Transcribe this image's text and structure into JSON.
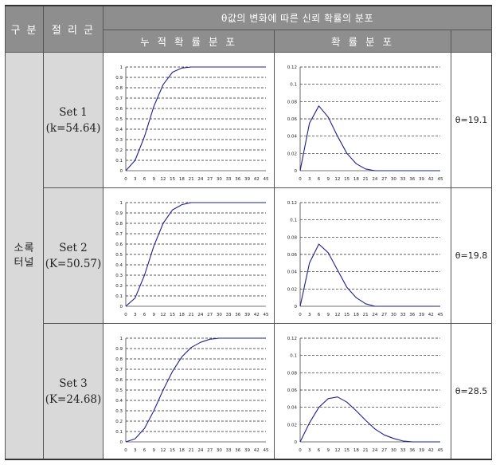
{
  "header": {
    "category": "구 분",
    "joint_group": "절 리 군",
    "title": "θ값의 변화에 따른 신뢰 확률의 분포",
    "cumulative": "누 적 확 률 분 포",
    "probability": "확 률 분 포"
  },
  "region": {
    "line1": "소록",
    "line2": "터널"
  },
  "rows": [
    {
      "set": "Set 1",
      "k": "(k=54.64)",
      "theta": "θ=19.1"
    },
    {
      "set": "Set 2",
      "k": "(K=50.57)",
      "theta": "θ=19.8"
    },
    {
      "set": "Set 3",
      "k": "(K=24.68)",
      "theta": "θ=28.5"
    }
  ],
  "chart_data": [
    {
      "type": "line",
      "series_of_row": 1,
      "kind": "cumulative",
      "x": [
        0,
        3,
        6,
        9,
        12,
        15,
        18,
        21,
        24,
        27,
        30,
        33,
        36,
        39,
        42,
        45
      ],
      "values": [
        0,
        0.1,
        0.33,
        0.62,
        0.83,
        0.95,
        0.99,
        1,
        1,
        1,
        1,
        1,
        1,
        1,
        1,
        1
      ],
      "ylim": [
        0,
        1
      ],
      "yticks": [
        "0",
        "0.1",
        "0.2",
        "0.3",
        "0.4",
        "0.5",
        "0.6",
        "0.7",
        "0.8",
        "0.9",
        "1"
      ],
      "xticks": [
        "0",
        "3",
        "6",
        "9",
        "12",
        "15",
        "18",
        "21",
        "24",
        "27",
        "30",
        "33",
        "36",
        "39",
        "42",
        "45"
      ],
      "color": "#1f1f8f"
    },
    {
      "type": "line",
      "series_of_row": 1,
      "kind": "probability",
      "x": [
        0,
        3,
        6,
        9,
        12,
        15,
        18,
        21,
        24,
        27,
        30,
        33,
        36,
        39,
        42,
        45
      ],
      "values": [
        0,
        0.055,
        0.075,
        0.062,
        0.04,
        0.02,
        0.008,
        0.002,
        0,
        0,
        0,
        0,
        0,
        0,
        0,
        0
      ],
      "ylim": [
        0,
        0.12
      ],
      "yticks": [
        "0",
        "0.02",
        "0.04",
        "0.06",
        "0.08",
        "0.1",
        "0.12"
      ],
      "xticks": [
        "0",
        "3",
        "6",
        "9",
        "12",
        "15",
        "18",
        "21",
        "24",
        "27",
        "30",
        "33",
        "36",
        "39",
        "42",
        "45"
      ],
      "color": "#1f1f8f"
    },
    {
      "type": "line",
      "series_of_row": 2,
      "kind": "cumulative",
      "x": [
        0,
        3,
        6,
        9,
        12,
        15,
        18,
        21,
        24,
        27,
        30,
        33,
        36,
        39,
        42,
        45
      ],
      "values": [
        0,
        0.08,
        0.3,
        0.58,
        0.8,
        0.93,
        0.98,
        1,
        1,
        1,
        1,
        1,
        1,
        1,
        1,
        1
      ],
      "ylim": [
        0,
        1
      ],
      "yticks": [
        "0",
        "0.1",
        "0.2",
        "0.3",
        "0.4",
        "0.5",
        "0.6",
        "0.7",
        "0.8",
        "0.9",
        "1"
      ],
      "xticks": [
        "0",
        "3",
        "6",
        "9",
        "12",
        "15",
        "18",
        "21",
        "24",
        "27",
        "30",
        "33",
        "36",
        "39",
        "42",
        "45"
      ],
      "color": "#1f1f8f"
    },
    {
      "type": "line",
      "series_of_row": 2,
      "kind": "probability",
      "x": [
        0,
        3,
        6,
        9,
        12,
        15,
        18,
        21,
        24,
        27,
        30,
        33,
        36,
        39,
        42,
        45
      ],
      "values": [
        0,
        0.05,
        0.072,
        0.062,
        0.042,
        0.022,
        0.01,
        0.003,
        0,
        0,
        0,
        0,
        0,
        0,
        0,
        0
      ],
      "ylim": [
        0,
        0.12
      ],
      "yticks": [
        "0",
        "0.02",
        "0.04",
        "0.06",
        "0.08",
        "0.1",
        "0.12"
      ],
      "xticks": [
        "0",
        "3",
        "6",
        "9",
        "12",
        "15",
        "18",
        "21",
        "24",
        "27",
        "30",
        "33",
        "36",
        "39",
        "42",
        "45"
      ],
      "color": "#1f1f8f"
    },
    {
      "type": "line",
      "series_of_row": 3,
      "kind": "cumulative",
      "x": [
        0,
        3,
        6,
        9,
        12,
        15,
        18,
        21,
        24,
        27,
        30,
        33,
        36,
        39,
        42,
        45
      ],
      "values": [
        0,
        0.03,
        0.13,
        0.3,
        0.5,
        0.68,
        0.82,
        0.91,
        0.96,
        0.99,
        1,
        1,
        1,
        1,
        1,
        1
      ],
      "ylim": [
        0,
        1
      ],
      "yticks": [
        "0",
        "0.1",
        "0.2",
        "0.3",
        "0.4",
        "0.5",
        "0.6",
        "0.7",
        "0.8",
        "0.9",
        "1"
      ],
      "xticks": [
        "0",
        "3",
        "6",
        "9",
        "12",
        "15",
        "18",
        "21",
        "24",
        "27",
        "30",
        "33",
        "36",
        "39",
        "42",
        "45"
      ],
      "color": "#1f1f8f"
    },
    {
      "type": "line",
      "series_of_row": 3,
      "kind": "probability",
      "x": [
        0,
        3,
        6,
        9,
        12,
        15,
        18,
        21,
        24,
        27,
        30,
        33,
        36,
        39,
        42,
        45
      ],
      "values": [
        0,
        0.022,
        0.04,
        0.05,
        0.052,
        0.046,
        0.036,
        0.025,
        0.015,
        0.008,
        0.004,
        0.001,
        0,
        0,
        0,
        0
      ],
      "ylim": [
        0,
        0.12
      ],
      "yticks": [
        "0",
        "0.02",
        "0.04",
        "0.06",
        "0.08",
        "0.1",
        "0.12"
      ],
      "xticks": [
        "0",
        "3",
        "6",
        "9",
        "12",
        "15",
        "18",
        "21",
        "24",
        "27",
        "30",
        "33",
        "36",
        "39",
        "42",
        "45"
      ],
      "color": "#1f1f8f"
    }
  ]
}
